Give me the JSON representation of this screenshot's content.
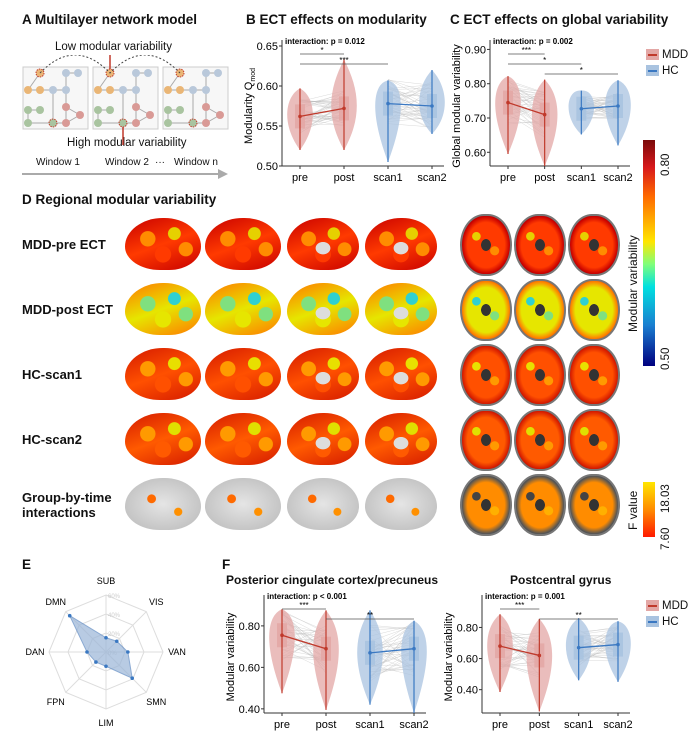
{
  "panelA": {
    "title": "A  Multilayer network model",
    "low": "Low  modular  variability",
    "high": "High  modular  variability",
    "windows": [
      "Window 1",
      "Window 2",
      "···",
      "Window n"
    ]
  },
  "panelB": {
    "title": "B  ECT effects on modularity"
  },
  "panelC": {
    "title": "C  ECT effects on global variability"
  },
  "panelD": {
    "title": "D Regional modular variability",
    "rows": [
      "MDD-pre ECT",
      "MDD-post ECT",
      "HC-scan1",
      "HC-scan2",
      "Group-by-time interactions"
    ],
    "colorbar1": {
      "label": "Modular variability",
      "max": "0.80",
      "min": "0.50"
    },
    "colorbar2": {
      "label": "F value",
      "max": "18.03",
      "min": "7.60"
    }
  },
  "panelE": {
    "title": "E"
  },
  "panelF": {
    "title": "F"
  },
  "legend": {
    "items": [
      {
        "name": "MDD",
        "color": "#c0392b"
      },
      {
        "name": "HC",
        "color": "#3a78c2"
      }
    ]
  },
  "colors": {
    "mdd": "#c0392b",
    "mdd_fill": "#e3a7a5",
    "hc": "#3a78c2",
    "hc_fill": "#a9c3e0"
  },
  "chart_data": [
    {
      "id": "B",
      "type": "violin",
      "ylabel": "Modularity Q",
      "ylabel_sub": "mod",
      "annotation": "interaction: p = 0.012",
      "ylim": [
        0.5,
        0.65
      ],
      "yticks": [
        "0.50",
        "0.55",
        "0.60",
        "0.65"
      ],
      "categories": [
        "pre",
        "post",
        "scan1",
        "scan2"
      ],
      "groups": [
        "MDD",
        "MDD",
        "HC",
        "HC"
      ],
      "means": [
        0.562,
        0.572,
        0.578,
        0.575
      ],
      "min": [
        0.52,
        0.52,
        0.505,
        0.54
      ],
      "max": [
        0.597,
        0.633,
        0.607,
        0.62
      ],
      "sig": [
        {
          "from": "pre",
          "to": "post",
          "label": "*"
        },
        {
          "from": "pre",
          "to": "scan1",
          "label": "***"
        }
      ]
    },
    {
      "id": "C",
      "type": "violin",
      "ylabel": "Global modular variability",
      "annotation": "interaction: p = 0.002",
      "ylim": [
        0.56,
        0.91
      ],
      "yticks": [
        "0.60",
        "0.70",
        "0.80",
        "0.90"
      ],
      "categories": [
        "pre",
        "post",
        "scan1",
        "scan2"
      ],
      "groups": [
        "MDD",
        "MDD",
        "HC",
        "HC"
      ],
      "means": [
        0.745,
        0.71,
        0.727,
        0.735
      ],
      "min": [
        0.595,
        0.56,
        0.652,
        0.62
      ],
      "max": [
        0.822,
        0.812,
        0.78,
        0.81
      ],
      "sig": [
        {
          "from": "pre",
          "to": "post",
          "label": "***"
        },
        {
          "from": "pre",
          "to": "scan1",
          "label": "*"
        },
        {
          "from": "post",
          "to": "scan2",
          "label": "*"
        }
      ]
    },
    {
      "id": "E",
      "type": "radar",
      "axes": [
        "SUB",
        "VIS",
        "VAN",
        "SMN",
        "LIM",
        "FPN",
        "DAN",
        "DMN"
      ],
      "ticks": [
        "0%",
        "20%",
        "40%",
        "60%"
      ],
      "rmax": 60,
      "values": [
        15,
        16,
        23,
        39,
        15,
        15,
        20,
        54
      ]
    },
    {
      "id": "F1",
      "type": "violin",
      "title": "Posterior cingulate cortex/precuneus",
      "ylabel": "Modular variability",
      "annotation": "interaction: p < 0.001",
      "ylim": [
        0.38,
        0.92
      ],
      "yticks": [
        "0.40",
        "0.60",
        "0.80"
      ],
      "categories": [
        "pre",
        "post",
        "scan1",
        "scan2"
      ],
      "groups": [
        "MDD",
        "MDD",
        "HC",
        "HC"
      ],
      "means": [
        0.755,
        0.69,
        0.67,
        0.69
      ],
      "min": [
        0.475,
        0.395,
        0.42,
        0.38
      ],
      "max": [
        0.88,
        0.875,
        0.875,
        0.825
      ],
      "sig": [
        {
          "from": "pre",
          "to": "post",
          "label": "***"
        },
        {
          "from": "post",
          "to": "scan2",
          "label": "**"
        }
      ]
    },
    {
      "id": "F2",
      "type": "violin",
      "title": "Postcentral gyrus",
      "ylabel": "Modular variability",
      "annotation": "interaction: p = 0.001",
      "ylim": [
        0.25,
        0.97
      ],
      "yticks": [
        "0.40",
        "0.60",
        "0.80"
      ],
      "categories": [
        "pre",
        "post",
        "scan1",
        "scan2"
      ],
      "groups": [
        "MDD",
        "MDD",
        "HC",
        "HC"
      ],
      "means": [
        0.68,
        0.62,
        0.67,
        0.69
      ],
      "min": [
        0.385,
        0.26,
        0.46,
        0.45
      ],
      "max": [
        0.885,
        0.855,
        0.86,
        0.84
      ],
      "sig": [
        {
          "from": "pre",
          "to": "post",
          "label": "***"
        },
        {
          "from": "post",
          "to": "scan2",
          "label": "**"
        }
      ]
    }
  ]
}
